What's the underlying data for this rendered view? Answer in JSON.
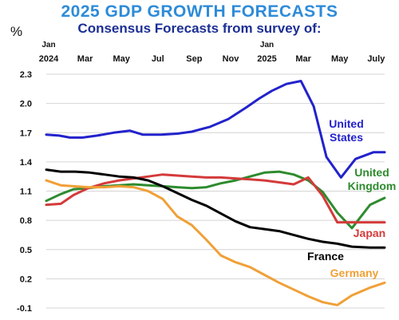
{
  "chart_data": {
    "type": "line",
    "title": "2025 GDP GROWTH FORECASTS",
    "subtitle": "Consensus Forecasts from survey of:",
    "ylabel": "%",
    "ylim": [
      -0.1,
      2.3
    ],
    "yticks": [
      "2.3",
      "2.0",
      "1.7",
      "1.4",
      "1.1",
      "0.8",
      "0.5",
      "0.2",
      "-0.1"
    ],
    "ytick_values": [
      2.3,
      2.0,
      1.7,
      1.4,
      1.1,
      0.8,
      0.5,
      0.2,
      -0.1
    ],
    "xticks": [
      {
        "label": "Jan",
        "sub": "2024",
        "index": 0
      },
      {
        "label": "Mar",
        "sub": "",
        "index": 2
      },
      {
        "label": "May",
        "sub": "",
        "index": 4
      },
      {
        "label": "Jul",
        "sub": "",
        "index": 6
      },
      {
        "label": "Sep",
        "sub": "",
        "index": 8
      },
      {
        "label": "Nov",
        "sub": "",
        "index": 10
      },
      {
        "label": "Jan",
        "sub": "2025",
        "index": 12
      },
      {
        "label": "Mar",
        "sub": "",
        "index": 14
      },
      {
        "label": "May",
        "sub": "",
        "index": 16
      },
      {
        "label": "July",
        "sub": "",
        "index": 18
      }
    ],
    "x": [
      "Jan 2024",
      "Feb 2024",
      "Mar 2024",
      "Apr 2024",
      "May 2024",
      "Jun 2024",
      "Jul 2024",
      "Aug 2024",
      "Sep 2024",
      "Oct 2024",
      "Nov 2024",
      "Dec 2024",
      "Jan 2025",
      "Feb 2025",
      "Mar 2025",
      "Apr 2025",
      "May 2025",
      "Jun 2025",
      "Jul 2025"
    ],
    "grid": "horizontal",
    "series": [
      {
        "name": "United States",
        "label_lines": [
          "United",
          "States"
        ],
        "color": "#2222CC",
        "x": [
          0,
          0.7,
          1.3,
          2,
          2.8,
          3.7,
          4.6,
          5.3,
          6.3,
          7.2,
          8,
          9,
          10,
          11,
          11.7,
          12.4,
          13.2,
          14,
          14.7,
          15.4,
          16.2,
          17,
          18,
          18.6
        ],
        "values": [
          1.68,
          1.67,
          1.65,
          1.65,
          1.67,
          1.7,
          1.72,
          1.68,
          1.68,
          1.69,
          1.71,
          1.76,
          1.84,
          1.96,
          2.05,
          2.13,
          2.2,
          2.23,
          1.97,
          1.45,
          1.24,
          1.43,
          1.5,
          1.5
        ]
      },
      {
        "name": "United Kingdom",
        "label_lines": [
          "United",
          "Kingdom"
        ],
        "color": "#2E8B2E",
        "x": [
          0,
          0.8,
          1.5,
          2.3,
          3.2,
          4,
          4.8,
          5.6,
          6.4,
          7.2,
          8,
          8.8,
          9.6,
          10.4,
          11.2,
          12,
          12.8,
          13.6,
          14.4,
          15.2,
          16,
          16.8,
          17.8,
          18.6
        ],
        "values": [
          1.0,
          1.07,
          1.12,
          1.13,
          1.15,
          1.16,
          1.17,
          1.16,
          1.15,
          1.14,
          1.13,
          1.14,
          1.18,
          1.21,
          1.25,
          1.29,
          1.3,
          1.27,
          1.21,
          1.09,
          0.88,
          0.72,
          0.96,
          1.03
        ]
      },
      {
        "name": "Japan",
        "label_lines": [
          "Japan"
        ],
        "color": "#D43A3A",
        "x": [
          0,
          0.8,
          1.5,
          2.3,
          3.2,
          4,
          4.8,
          5.6,
          6.4,
          7.2,
          8,
          8.8,
          9.6,
          10.4,
          11.2,
          12,
          12.8,
          13.6,
          14.4,
          15.2,
          16,
          16.8,
          17.8,
          18.6
        ],
        "values": [
          0.96,
          0.97,
          1.06,
          1.13,
          1.18,
          1.21,
          1.23,
          1.25,
          1.27,
          1.26,
          1.25,
          1.24,
          1.24,
          1.23,
          1.22,
          1.21,
          1.19,
          1.17,
          1.24,
          1.05,
          0.78,
          0.78,
          0.78,
          0.78
        ]
      },
      {
        "name": "France",
        "label_lines": [
          "France"
        ],
        "color": "#000000",
        "x": [
          0,
          0.8,
          1.6,
          2.4,
          3.2,
          4,
          4.8,
          5.6,
          6.4,
          7.2,
          8,
          8.8,
          9.6,
          10.4,
          11.2,
          12,
          12.8,
          13.6,
          14.4,
          15.2,
          16,
          16.8,
          17.8,
          18.6
        ],
        "values": [
          1.32,
          1.3,
          1.3,
          1.29,
          1.27,
          1.25,
          1.24,
          1.21,
          1.15,
          1.08,
          1.01,
          0.95,
          0.87,
          0.79,
          0.73,
          0.71,
          0.69,
          0.65,
          0.61,
          0.58,
          0.56,
          0.53,
          0.52,
          0.52
        ]
      },
      {
        "name": "Germany",
        "label_lines": [
          "Germany"
        ],
        "color": "#F0A037",
        "x": [
          0,
          0.8,
          1.5,
          2.3,
          3.2,
          4,
          4.8,
          5.6,
          6.4,
          7.2,
          8,
          8.8,
          9.6,
          10.4,
          11.2,
          12,
          12.8,
          13.6,
          14.4,
          15.2,
          16,
          16.8,
          17.8,
          18.6
        ],
        "values": [
          1.21,
          1.16,
          1.15,
          1.14,
          1.14,
          1.15,
          1.14,
          1.1,
          1.02,
          0.84,
          0.75,
          0.6,
          0.44,
          0.37,
          0.32,
          0.24,
          0.16,
          0.09,
          0.02,
          -0.04,
          -0.07,
          0.03,
          0.11,
          0.16
        ]
      }
    ]
  }
}
